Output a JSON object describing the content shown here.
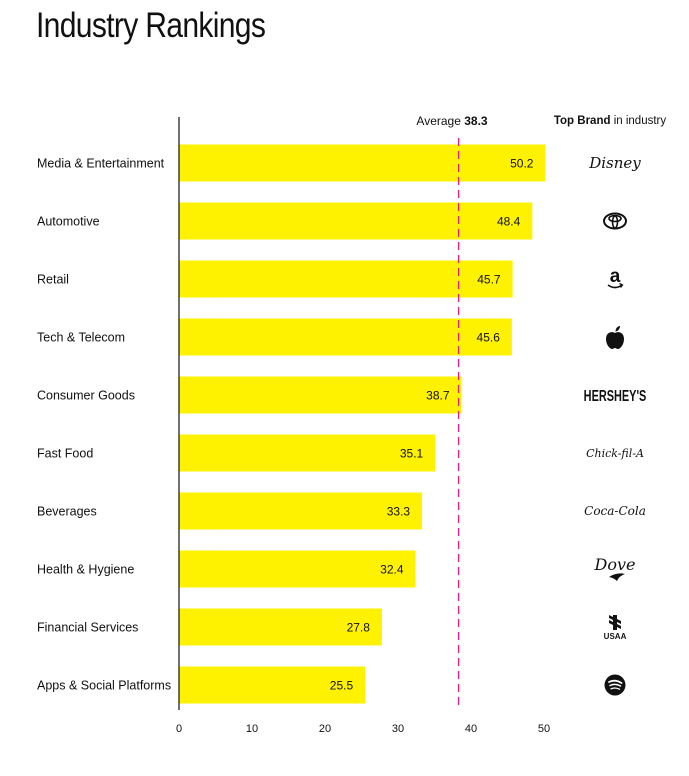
{
  "page_title": "Industry Rankings",
  "chart_data": {
    "type": "bar",
    "orientation": "horizontal",
    "title": "Industry Rankings",
    "categories": [
      "Media & Entertainment",
      "Automotive",
      "Retail",
      "Tech & Telecom",
      "Consumer Goods",
      "Fast Food",
      "Beverages",
      "Health & Hygiene",
      "Financial Services",
      "Apps & Social Platforms"
    ],
    "values": [
      50.2,
      48.4,
      45.7,
      45.6,
      38.7,
      35.1,
      33.3,
      32.4,
      27.8,
      25.5
    ],
    "value_labels": [
      "50.2",
      "48.4",
      "45.7",
      "45.6",
      "38.7",
      "35.1",
      "33.3",
      "32.4",
      "27.8",
      "25.5"
    ],
    "xlim": [
      0,
      50
    ],
    "xticks": [
      0,
      10,
      20,
      30,
      40,
      50
    ],
    "xtick_labels": [
      "0",
      "10",
      "20",
      "30",
      "40",
      "50"
    ],
    "grid": false,
    "bar_color": "#fff200",
    "average": {
      "label": "Average",
      "value": 38.3,
      "value_label": "38.3",
      "line_color": "#e0218a",
      "line_style": "dashed"
    },
    "top_brand_header": {
      "bold": "Top Brand",
      "rest": " in industry"
    },
    "top_brands": [
      {
        "brand": "Disney",
        "icon": "disney-logo"
      },
      {
        "brand": "Toyota",
        "icon": "toyota-logo"
      },
      {
        "brand": "Amazon",
        "icon": "amazon-logo"
      },
      {
        "brand": "Apple",
        "icon": "apple-logo"
      },
      {
        "brand": "HERSHEY'S",
        "icon": "hersheys-logo"
      },
      {
        "brand": "Chick-fil-A",
        "icon": "chick-fil-a-logo"
      },
      {
        "brand": "Coca-Cola",
        "icon": "coca-cola-logo"
      },
      {
        "brand": "Dove",
        "icon": "dove-logo"
      },
      {
        "brand": "USAA",
        "icon": "usaa-logo"
      },
      {
        "brand": "Spotify",
        "icon": "spotify-logo"
      }
    ]
  }
}
